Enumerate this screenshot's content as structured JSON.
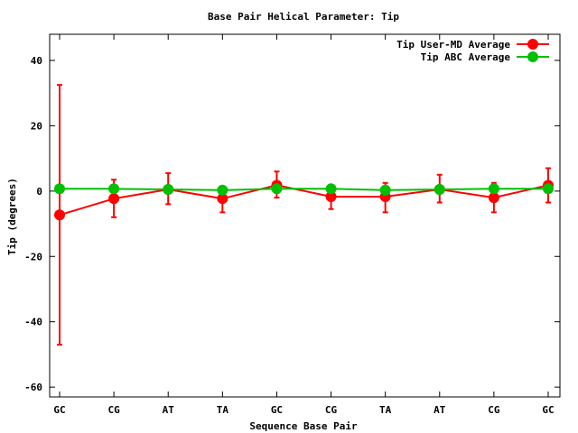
{
  "chart_data": {
    "type": "line",
    "title": "Base Pair Helical Parameter: Tip",
    "xlabel": "Sequence Base Pair",
    "ylabel": "Tip (degrees)",
    "categories": [
      "GC",
      "CG",
      "AT",
      "TA",
      "GC",
      "CG",
      "TA",
      "AT",
      "CG",
      "GC"
    ],
    "ylim": [
      -63,
      48
    ],
    "yticks": [
      -60,
      -40,
      -20,
      0,
      20,
      40
    ],
    "ytick_labels": [
      "-60",
      "-40",
      "-20",
      "0",
      "20",
      "40"
    ],
    "grid": false,
    "legend_position": "top-right",
    "series": [
      {
        "name": "Tip User-MD Average",
        "color": "#ff0000",
        "values": [
          -7.3,
          -2.3,
          0.5,
          -2.3,
          1.8,
          -1.7,
          -1.7,
          0.5,
          -2.0,
          1.8
        ],
        "error_low": [
          -47.0,
          -8.0,
          -4.0,
          -6.5,
          -2.0,
          -5.5,
          -6.5,
          -3.5,
          -6.5,
          -3.5
        ],
        "error_high": [
          32.5,
          3.5,
          5.5,
          0.5,
          6.0,
          1.5,
          2.5,
          5.0,
          2.5,
          7.0
        ]
      },
      {
        "name": "Tip ABC Average",
        "color": "#00c000",
        "values": [
          0.7,
          0.7,
          0.5,
          0.3,
          0.7,
          0.7,
          0.3,
          0.5,
          0.7,
          0.7
        ]
      }
    ]
  }
}
